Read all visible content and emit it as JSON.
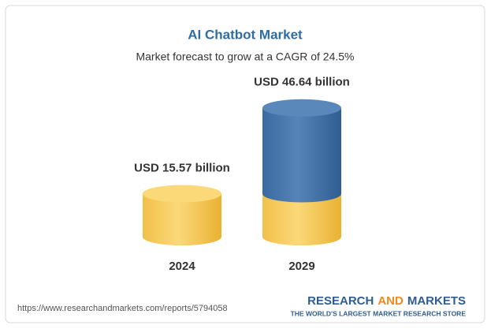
{
  "chart_data": {
    "type": "bar",
    "title": "AI Chatbot Market",
    "subtitle": "Market forecast to grow at a CAGR of 24.5%",
    "categories": [
      "2024",
      "2029"
    ],
    "values": [
      15.57,
      46.64
    ],
    "value_labels": [
      "USD 15.57 billion",
      "USD 46.64 billion"
    ],
    "colors": [
      "#f6c64c",
      "#3f70a6"
    ],
    "source": "https://www.researchandmarkets.com/reports/5794058",
    "brand": {
      "word1": "RESEARCH",
      "word2": "AND",
      "word3": "MARKETS",
      "tagline": "THE WORLD'S LARGEST MARKET RESEARCH STORE"
    }
  }
}
